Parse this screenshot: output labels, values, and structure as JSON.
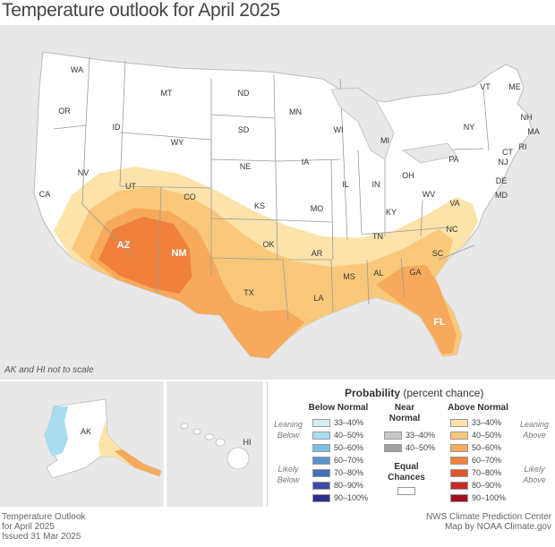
{
  "title": "Temperature outlook for April 2025",
  "map_note": "AK and HI not to scale",
  "states": [
    {
      "abbr": "WA"
    },
    {
      "abbr": "OR"
    },
    {
      "abbr": "CA"
    },
    {
      "abbr": "NV"
    },
    {
      "abbr": "ID"
    },
    {
      "abbr": "MT"
    },
    {
      "abbr": "WY"
    },
    {
      "abbr": "UT"
    },
    {
      "abbr": "AZ"
    },
    {
      "abbr": "CO"
    },
    {
      "abbr": "NM"
    },
    {
      "abbr": "ND"
    },
    {
      "abbr": "SD"
    },
    {
      "abbr": "NE"
    },
    {
      "abbr": "KS"
    },
    {
      "abbr": "OK"
    },
    {
      "abbr": "TX"
    },
    {
      "abbr": "MN"
    },
    {
      "abbr": "IA"
    },
    {
      "abbr": "MO"
    },
    {
      "abbr": "AR"
    },
    {
      "abbr": "LA"
    },
    {
      "abbr": "WI"
    },
    {
      "abbr": "IL"
    },
    {
      "abbr": "MS"
    },
    {
      "abbr": "MI"
    },
    {
      "abbr": "IN"
    },
    {
      "abbr": "KY"
    },
    {
      "abbr": "TN"
    },
    {
      "abbr": "AL"
    },
    {
      "abbr": "OH"
    },
    {
      "abbr": "WV"
    },
    {
      "abbr": "VA"
    },
    {
      "abbr": "NC"
    },
    {
      "abbr": "SC"
    },
    {
      "abbr": "GA"
    },
    {
      "abbr": "FL"
    },
    {
      "abbr": "PA"
    },
    {
      "abbr": "NY"
    },
    {
      "abbr": "VT"
    },
    {
      "abbr": "ME"
    },
    {
      "abbr": "NH"
    },
    {
      "abbr": "MA"
    },
    {
      "abbr": "CT"
    },
    {
      "abbr": "RI"
    },
    {
      "abbr": "NJ"
    },
    {
      "abbr": "DE"
    },
    {
      "abbr": "MD"
    },
    {
      "abbr": "AK"
    },
    {
      "abbr": "HI"
    }
  ],
  "legend": {
    "title_bold": "Probability",
    "title_rest": " (percent chance)",
    "below_head": "Below Normal",
    "near_head_1": "Near",
    "near_head_2": "Normal",
    "above_head": "Above Normal",
    "leaning_below_1": "Leaning",
    "leaning_below_2": "Below",
    "likely_below_1": "Likely",
    "likely_below_2": "Below",
    "leaning_above_1": "Leaning",
    "leaning_above_2": "Above",
    "likely_above_1": "Likely",
    "likely_above_2": "Above",
    "equal_1": "Equal",
    "equal_2": "Chances",
    "below": [
      {
        "label": "33–40%",
        "color": "#d4eef6"
      },
      {
        "label": "40–50%",
        "color": "#a8dcef"
      },
      {
        "label": "50–60%",
        "color": "#7fbde4"
      },
      {
        "label": "60–70%",
        "color": "#5a94d0"
      },
      {
        "label": "70–80%",
        "color": "#4470bb"
      },
      {
        "label": "80–90%",
        "color": "#3a4ea6"
      },
      {
        "label": "90–100%",
        "color": "#2c2f8c"
      }
    ],
    "near": [
      {
        "label": "33–40%",
        "color": "#c8c8c8"
      },
      {
        "label": "40–50%",
        "color": "#a0a0a0"
      }
    ],
    "above": [
      {
        "label": "33–40%",
        "color": "#fbe3a9"
      },
      {
        "label": "40–50%",
        "color": "#fac87b"
      },
      {
        "label": "50–60%",
        "color": "#f7a95c"
      },
      {
        "label": "60–70%",
        "color": "#f0803c"
      },
      {
        "label": "70–80%",
        "color": "#e2552d"
      },
      {
        "label": "80–90%",
        "color": "#c62a24"
      },
      {
        "label": "90–100%",
        "color": "#a01020"
      }
    ]
  },
  "footer": {
    "left_1": "Temperature Outlook",
    "left_2": "for April 2025",
    "left_3": "Issued 31 Mar 2025",
    "right_1": "NWS Climate Prediction Center",
    "right_2": "Map by NOAA Climate.gov"
  }
}
